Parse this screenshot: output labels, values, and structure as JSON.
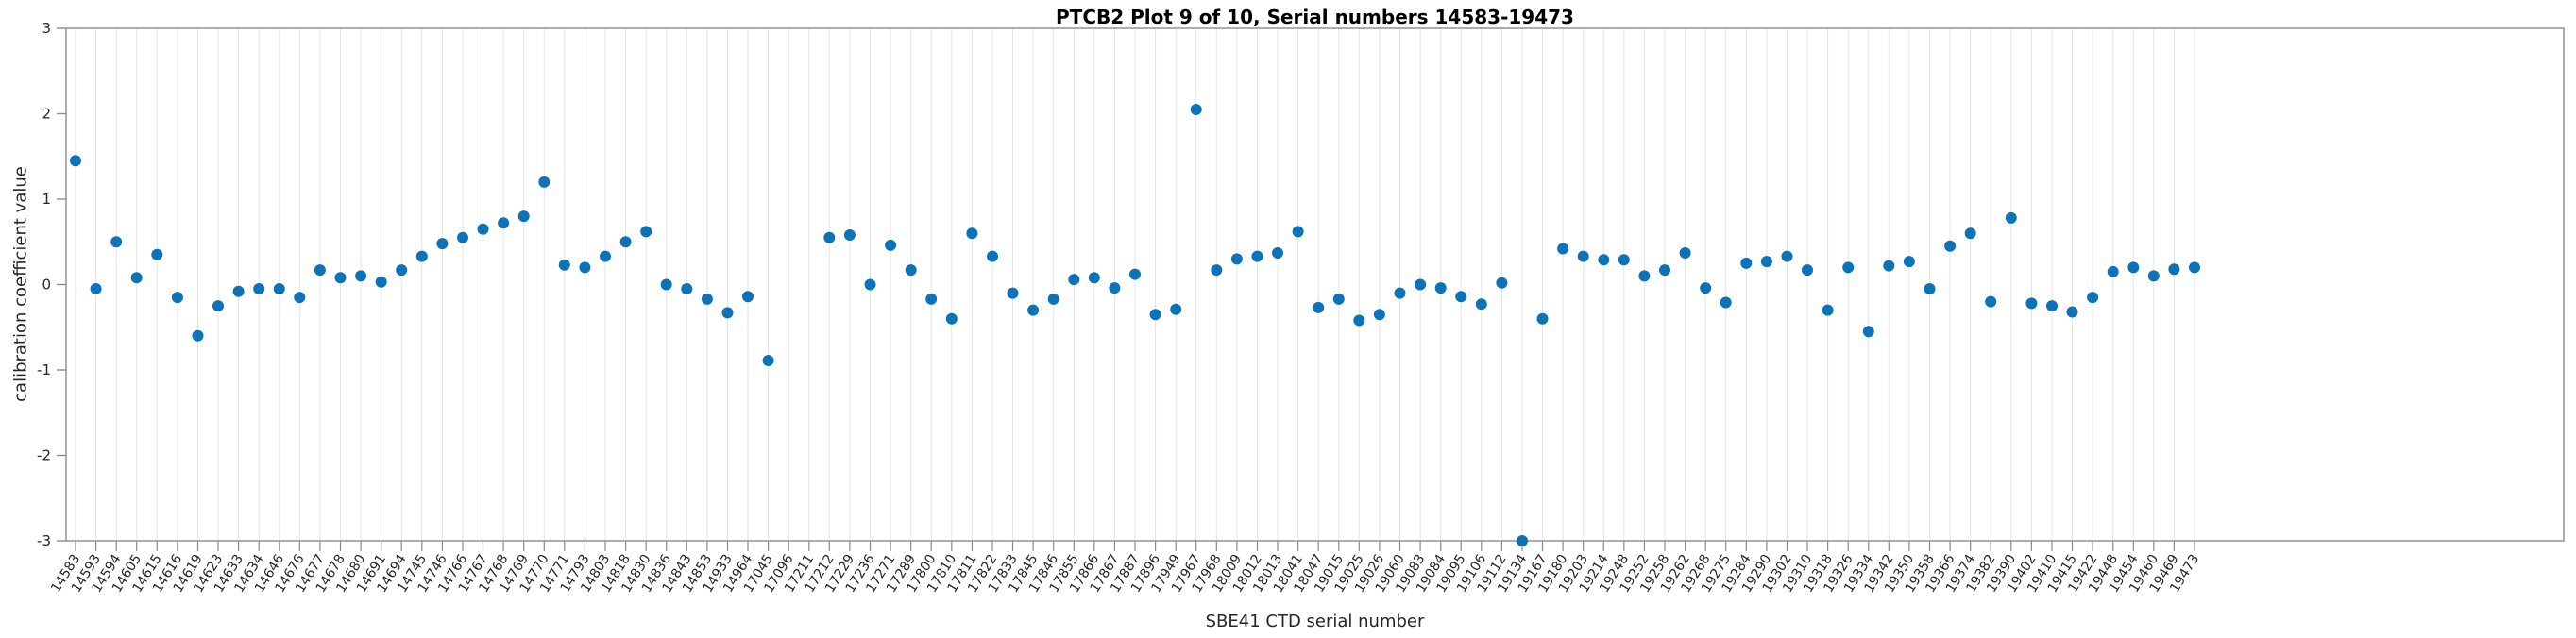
{
  "figure": {
    "background": "#ffffff"
  },
  "chart_data": {
    "type": "scatter",
    "title": "PTCB2 Plot 9 of 10, Serial numbers 14583-19473",
    "xlabel": "SBE41 CTD serial number",
    "ylabel": "calibration coefficient value",
    "ylim": [
      -3,
      3
    ],
    "yticks": [
      -3,
      -2,
      -1,
      0,
      1,
      2,
      3
    ],
    "grid": "vertical",
    "legend": "none",
    "marker_color": "#0d73b9",
    "axis_color": "#8a8a8a",
    "grid_color": "#e4e4e4",
    "tick_label_color": "#262626",
    "categories": [
      "14583",
      "14593",
      "14594",
      "14605",
      "14615",
      "14616",
      "14619",
      "14623",
      "14633",
      "14634",
      "14646",
      "14676",
      "14677",
      "14678",
      "14680",
      "14691",
      "14694",
      "14745",
      "14746",
      "14766",
      "14767",
      "14768",
      "14769",
      "14770",
      "14771",
      "14793",
      "14803",
      "14818",
      "14830",
      "14836",
      "14843",
      "14853",
      "14933",
      "14964",
      "17045",
      "17096",
      "17211",
      "17212",
      "17229",
      "17236",
      "17271",
      "17289",
      "17800",
      "17810",
      "17811",
      "17822",
      "17833",
      "17845",
      "17846",
      "17855",
      "17866",
      "17867",
      "17887",
      "17896",
      "17949",
      "17967",
      "17968",
      "18009",
      "18012",
      "18013",
      "18041",
      "18047",
      "19015",
      "19025",
      "19026",
      "19060",
      "19083",
      "19084",
      "19095",
      "19106",
      "19112",
      "19134",
      "19167",
      "19180",
      "19203",
      "19214",
      "19248",
      "19252",
      "19258",
      "19262",
      "19268",
      "19275",
      "19284",
      "19290",
      "19302",
      "19310",
      "19318",
      "19326",
      "19334",
      "19342",
      "19350",
      "19358",
      "19366",
      "19374",
      "19382",
      "19390",
      "19402",
      "19410",
      "19415",
      "19422",
      "19448",
      "19454",
      "19460",
      "19469",
      "19473"
    ],
    "values": [
      1.45,
      -0.05,
      0.5,
      0.08,
      0.35,
      -0.15,
      -0.6,
      -0.25,
      -0.08,
      -0.05,
      -0.05,
      -0.15,
      0.17,
      0.08,
      0.1,
      0.03,
      0.17,
      0.33,
      0.48,
      0.55,
      0.65,
      0.72,
      0.8,
      1.2,
      0.23,
      0.2,
      0.33,
      0.5,
      0.62,
      0.0,
      -0.05,
      -0.17,
      -0.33,
      -0.14,
      -0.89,
      null,
      null,
      0.55,
      0.58,
      0.0,
      0.46,
      0.17,
      -0.17,
      -0.4,
      0.6,
      0.33,
      -0.1,
      -0.3,
      -0.17,
      0.06,
      0.08,
      -0.04,
      0.12,
      -0.35,
      -0.29,
      2.05,
      0.17,
      0.3,
      0.33,
      0.37,
      0.62,
      -0.27,
      -0.17,
      -0.42,
      -0.35,
      -0.1,
      0.0,
      -0.04,
      -0.14,
      -0.23,
      0.02,
      -3.0,
      -0.4,
      0.42,
      0.33,
      0.29,
      0.29,
      0.1,
      0.17,
      0.37,
      -0.04,
      -0.21,
      0.25,
      0.27,
      0.33,
      0.17,
      -0.3,
      0.2,
      -0.55,
      0.22,
      0.27,
      -0.05,
      0.45,
      0.6,
      -0.2,
      0.78,
      -0.22,
      -0.25,
      -0.32,
      -0.15,
      0.15,
      0.2,
      0.1,
      0.18,
      0.2
    ]
  }
}
